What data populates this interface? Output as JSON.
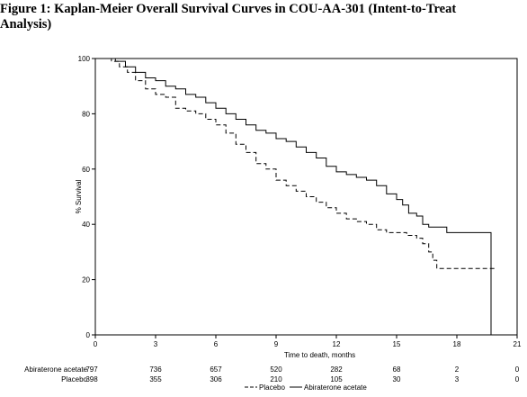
{
  "figure": {
    "caption_line1": "Figure 1: Kaplan-Meier Overall Survival Curves in COU-AA-301 (Intent-to-Treat",
    "caption_line2": "Analysis)"
  },
  "chart_data": {
    "type": "line",
    "xlabel": "Time to death, months",
    "ylabel": "% Survival",
    "xlim": [
      0,
      21
    ],
    "ylim": [
      0,
      100
    ],
    "xticks": [
      0,
      3,
      6,
      9,
      12,
      15,
      18,
      21
    ],
    "yticks": [
      0,
      20,
      40,
      60,
      80,
      100
    ],
    "grid": false,
    "legend_position": "bottom-center",
    "series": [
      {
        "name": "Placebo",
        "style": "dashed",
        "color": "#000000",
        "x": [
          0,
          0.3,
          0.8,
          1.2,
          1.6,
          2.0,
          2.5,
          3.0,
          3.5,
          4.0,
          4.5,
          5.0,
          5.5,
          6.0,
          6.5,
          7.0,
          7.5,
          8.0,
          8.5,
          9.0,
          9.5,
          10.0,
          10.5,
          11.0,
          11.5,
          12.0,
          12.5,
          13.0,
          13.5,
          14.0,
          14.5,
          15.0,
          15.5,
          16.0,
          16.3,
          16.6,
          16.8,
          17.0,
          17.5,
          18.0,
          19.0,
          20.0
        ],
        "y": [
          100,
          100,
          99,
          97,
          95,
          92,
          89,
          87,
          86,
          82,
          81,
          80,
          78,
          76,
          73,
          69,
          66,
          62,
          60,
          56,
          54,
          52,
          50,
          48,
          46,
          44,
          42,
          41,
          40,
          38,
          37,
          37,
          36,
          35,
          33,
          30,
          27,
          24,
          24,
          24,
          24,
          24
        ]
      },
      {
        "name": "Abiraterone acetate",
        "style": "solid",
        "color": "#000000",
        "x": [
          0,
          0.5,
          1.0,
          1.5,
          2.0,
          2.5,
          3.0,
          3.5,
          4.0,
          4.5,
          5.0,
          5.5,
          6.0,
          6.5,
          7.0,
          7.5,
          8.0,
          8.5,
          9.0,
          9.5,
          10.0,
          10.5,
          11.0,
          11.5,
          12.0,
          12.5,
          13.0,
          13.5,
          14.0,
          14.5,
          15.0,
          15.3,
          15.6,
          16.0,
          16.3,
          16.6,
          17.0,
          17.5,
          18.0,
          19.0,
          19.7,
          19.7
        ],
        "y": [
          100,
          100,
          99,
          97,
          95,
          93,
          92,
          90,
          89,
          87,
          86,
          84,
          82,
          80,
          78,
          76,
          74,
          73,
          71,
          70,
          68,
          66,
          64,
          61,
          59,
          58,
          57,
          56,
          54,
          51,
          49,
          47,
          44,
          43,
          40,
          39,
          39,
          37,
          37,
          37,
          37,
          0
        ]
      }
    ],
    "at_risk": {
      "times": [
        0,
        3,
        6,
        9,
        12,
        15,
        18,
        21
      ],
      "rows": [
        {
          "label": "Abiraterone acetate",
          "values": [
            "797",
            "736",
            "657",
            "520",
            "282",
            "68",
            "2",
            "0"
          ]
        },
        {
          "label": "Placebo",
          "values": [
            "398",
            "355",
            "306",
            "210",
            "105",
            "30",
            "3",
            "0"
          ]
        }
      ]
    },
    "legend": [
      {
        "label": "Placebo",
        "style": "dashed"
      },
      {
        "label": "Abiraterone acetate",
        "style": "solid"
      }
    ]
  }
}
